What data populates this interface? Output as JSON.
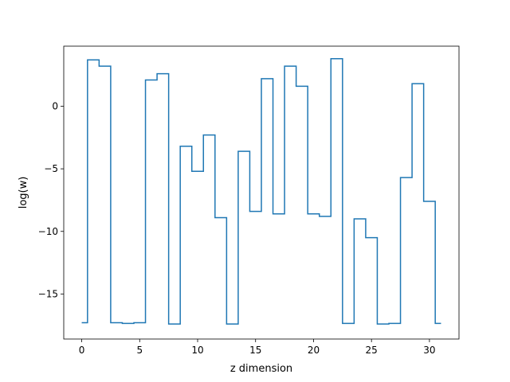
{
  "chart_data": {
    "type": "line",
    "drawstyle": "steps-mid",
    "title": "",
    "xlabel": "z dimension",
    "ylabel": "log(w)",
    "xlim": [
      -1.55,
      32.55
    ],
    "ylim": [
      -18.6,
      4.8
    ],
    "grid": false,
    "legend": "none",
    "line_color": "#1f77b4",
    "x_ticks": [
      0,
      5,
      10,
      15,
      20,
      25,
      30
    ],
    "y_ticks": [
      -15,
      -10,
      -5,
      0
    ],
    "x_tick_labels": [
      "0",
      "5",
      "10",
      "15",
      "20",
      "25",
      "30"
    ],
    "y_tick_labels": [
      "−15",
      "−10",
      "−5",
      "0"
    ],
    "x": [
      0,
      1,
      2,
      3,
      4,
      5,
      6,
      7,
      8,
      9,
      10,
      11,
      12,
      13,
      14,
      15,
      16,
      17,
      18,
      19,
      20,
      21,
      22,
      23,
      24,
      25,
      26,
      27,
      28,
      29,
      30,
      31
    ],
    "series": [
      {
        "values": [
          -17.3,
          3.7,
          3.2,
          -17.3,
          -17.35,
          -17.3,
          2.1,
          2.6,
          -17.4,
          -3.2,
          -5.2,
          -2.3,
          -8.9,
          -17.4,
          -3.6,
          -8.4,
          2.2,
          -8.6,
          3.2,
          1.6,
          -8.6,
          -8.8,
          3.8,
          -17.35,
          -9.0,
          -10.5,
          -17.4,
          -17.35,
          -5.7,
          1.8,
          -7.6,
          -17.35
        ]
      }
    ]
  }
}
